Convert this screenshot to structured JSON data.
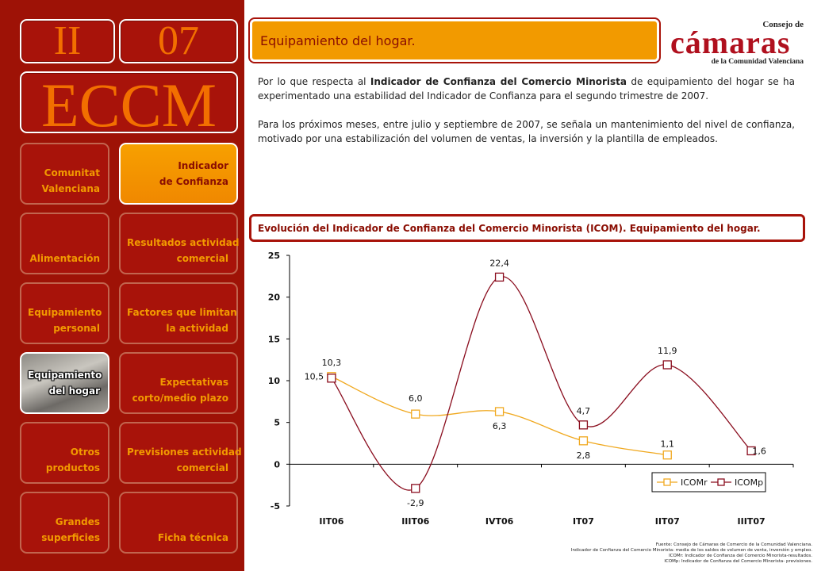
{
  "header": {
    "chapter": "II",
    "number": "07",
    "acronym": "ECCM",
    "section_title": "Equipamiento del hogar."
  },
  "logo": {
    "line1": "Consejo de",
    "brand": "cámaras",
    "line3": "de la Comunidad Valenciana"
  },
  "nav": {
    "comunitat": [
      "Comunitat",
      "Valenciana"
    ],
    "indicador": [
      "Indicador",
      "de Confianza"
    ],
    "alimentacion": [
      "Alimentación"
    ],
    "resultados": [
      "Resultados actividad",
      "comercial"
    ],
    "equip_personal": [
      "Equipamiento",
      "personal"
    ],
    "factores": [
      "Factores que limitan",
      "la actividad"
    ],
    "equip_hogar": [
      "Equipamiento",
      "del hogar"
    ],
    "expectativas": [
      "Expectativas",
      "corto/medio plazo"
    ],
    "otros": [
      "Otros",
      "productos"
    ],
    "previsiones": [
      "Previsiones actividad",
      "comercial"
    ],
    "grandes": [
      "Grandes",
      "superficies"
    ],
    "ficha": [
      "Ficha técnica"
    ]
  },
  "body": {
    "p1_before": "Por lo que respecta al ",
    "p1_bold": "Indicador de Confianza del Comercio Minorista",
    "p1_after": " de equipamiento del hogar se ha experimentado una estabilidad del Indicador de Confianza para el segundo trimestre de 2007.",
    "p2": "Para los próximos meses, entre julio y septiembre de 2007, se señala un mantenimiento del nivel de confianza, motivado por una estabilización del volumen de ventas, la inversión y la plantilla de empleados."
  },
  "chart_title": "Evolución del Indicador de Confianza del Comercio Minorista (ICOM). Equipamiento del hogar.",
  "chart_data": {
    "type": "line",
    "categories": [
      "IIT06",
      "IIIT06",
      "IVT06",
      "IT07",
      "IIT07",
      "IIIT07"
    ],
    "ylim": [
      -5,
      25
    ],
    "yticks": [
      -5,
      0,
      5,
      10,
      15,
      20,
      25
    ],
    "grid": false,
    "legend_position": "bottom-right",
    "series": [
      {
        "name": "ICOMr",
        "color": "#f0a81e",
        "values": [
          10.5,
          6.0,
          6.3,
          2.8,
          1.1,
          null
        ],
        "labels": [
          "10,5",
          "6,0",
          "6,3",
          "2,8",
          "1,1",
          ""
        ]
      },
      {
        "name": "ICOMp",
        "color": "#8a0d1e",
        "values": [
          10.3,
          -2.9,
          22.4,
          4.7,
          11.9,
          1.6
        ],
        "labels": [
          "10,3",
          "-2,9",
          "22,4",
          "4,7",
          "11,9",
          "1,6"
        ]
      }
    ]
  },
  "footnotes": [
    "Fuente: Consejo de Cámaras de Comercio de la Comunidad Valenciana.",
    "Indicador de Confianza del Comercio Minorista: media de los saldos de volumen de venta, inversión y empleo.",
    "ICOMr: Indicador de Confianza del Comercio Minorista-resultados.",
    "ICOMp: Indicador de Confianza del Comercio Minorista- previsiones."
  ]
}
